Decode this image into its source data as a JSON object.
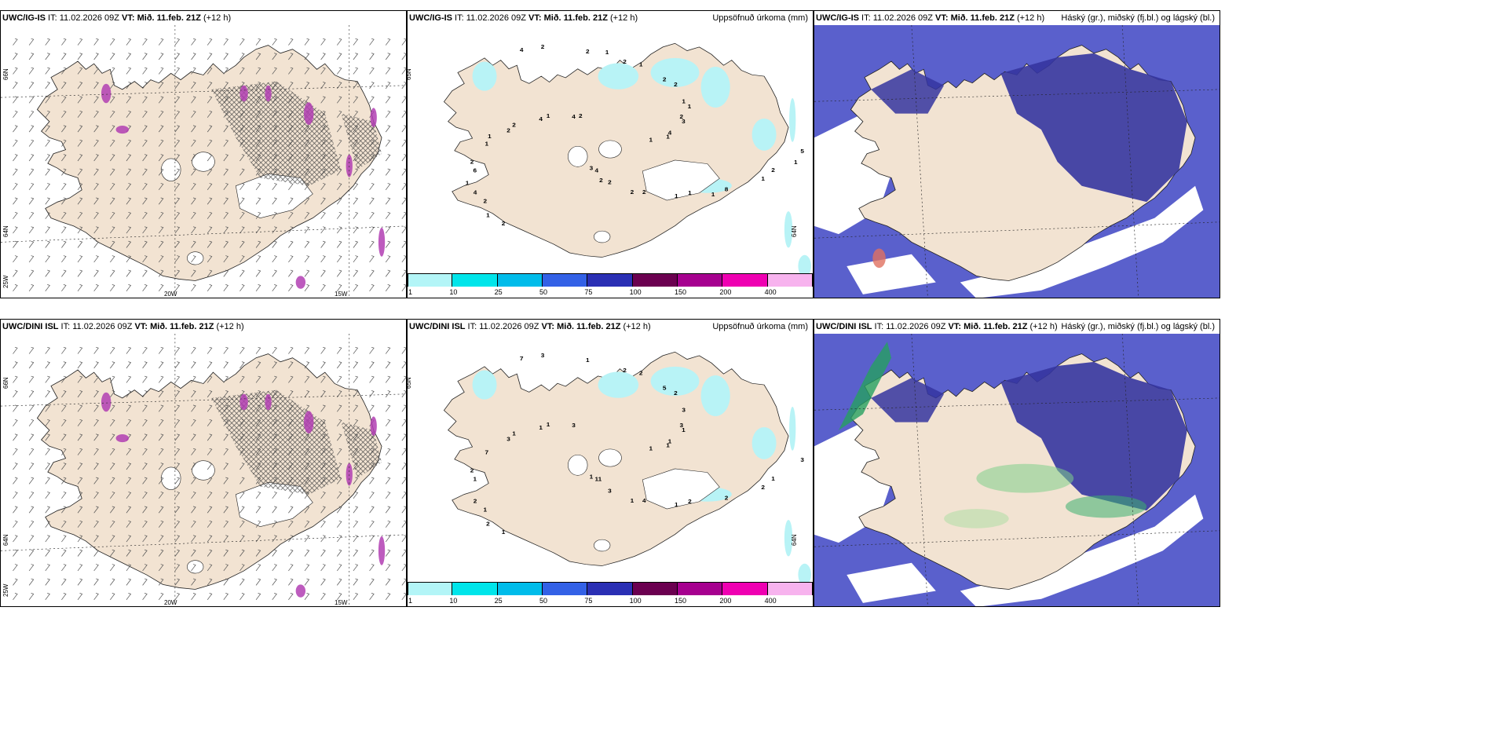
{
  "panels": [
    {
      "id": "p1",
      "model": "UWC/IG-IS",
      "it_label": "IT:",
      "it_value": "11.02.2026 09Z",
      "vt_label": "VT:",
      "vt_value": "Mið. 11.feb. 21Z",
      "lead": "(+12 h)",
      "right_title": "",
      "kind": "wind",
      "lat_labels": [
        "66N",
        "64N",
        "25W"
      ],
      "lon_labels": [
        "20W",
        "15W"
      ]
    },
    {
      "id": "p2",
      "model": "UWC/IG-IS",
      "it_label": "IT:",
      "it_value": "11.02.2026 09Z",
      "vt_label": "VT:",
      "vt_value": "Mið. 11.feb. 21Z",
      "lead": "(+12 h)",
      "right_title": "Uppsöfnuð úrkoma (mm)",
      "kind": "precip",
      "lat_labels": [
        "65N",
        "64N"
      ],
      "numbers": [
        "1",
        "2",
        "2",
        "1",
        "2",
        "2",
        "4",
        "4",
        "2",
        "6",
        "2",
        "2",
        "4",
        "4",
        "2",
        "2",
        "8",
        "1",
        "1",
        "2",
        "4",
        "5",
        "4",
        "1",
        "1",
        "2",
        "3",
        "3",
        "2",
        "1",
        "2",
        "2",
        "2",
        "1",
        "1",
        "1",
        "1",
        "1",
        "1",
        "1",
        "2",
        "2",
        "1",
        "1"
      ]
    },
    {
      "id": "p3",
      "model": "UWC/IG-IS",
      "it_label": "IT:",
      "it_value": "11.02.2026 09Z",
      "vt_label": "VT:",
      "vt_value": "Mið. 11.feb. 21Z",
      "lead": "(+12 h)",
      "right_title": "Háský (gr.), miðský (fj.bl.) og lágský (bl.)",
      "kind": "cloud"
    },
    {
      "id": "p4",
      "model": "UWC/DINI ISL",
      "it_label": "IT:",
      "it_value": "11.02.2026 09Z",
      "vt_label": "VT:",
      "vt_value": "Mið. 11.feb. 21Z",
      "lead": "(+12 h)",
      "right_title": "",
      "kind": "wind",
      "lat_labels": [
        "66N",
        "64N",
        "25W"
      ],
      "lon_labels": [
        "20W",
        "15W"
      ]
    },
    {
      "id": "p5",
      "model": "UWC/DINI ISL",
      "it_label": "IT:",
      "it_value": "11.02.2026 09Z",
      "vt_label": "VT:",
      "vt_value": "Mið. 11.feb. 21Z",
      "lead": "(+12 h)",
      "right_title": "Uppsöfnuð úrkoma (mm)",
      "kind": "precip",
      "lat_labels": [
        "65N",
        "64N"
      ],
      "numbers": [
        "1",
        "1",
        "2",
        "2",
        "3",
        "3",
        "11",
        "7",
        "1",
        "1",
        "5",
        "4",
        "1",
        "1",
        "1",
        "1",
        "2",
        "7",
        "3",
        "3",
        "3",
        "3",
        "2",
        "2",
        "1",
        "1",
        "1",
        "1",
        "3",
        "2",
        "2",
        "2",
        "1",
        "1",
        "1",
        "2"
      ]
    },
    {
      "id": "p6",
      "model": "UWC/DINI ISL",
      "it_label": "IT:",
      "it_value": "11.02.2026 09Z",
      "vt_label": "VT:",
      "vt_value": "Mið. 11.feb. 21Z",
      "lead": "(+12 h)",
      "right_title": "Háský (gr.), miðský (fj.bl.) og lágský (bl.)",
      "kind": "cloud"
    }
  ],
  "legend": {
    "ticks": [
      "1",
      "10",
      "25",
      "50",
      "75",
      "100",
      "150",
      "200",
      "400"
    ],
    "colors": [
      "#b3f5f7",
      "#00e5ea",
      "#00bcea",
      "#3361e6",
      "#2a2fb4",
      "#6b0050",
      "#a6008f",
      "#ef00b2",
      "#f7b3ee"
    ]
  },
  "colors": {
    "land": "#f2e3d2",
    "cloud_mid": "#3535a0",
    "cloud_low": "#5a60cc",
    "precip_light": "#b8f3f6",
    "high_cloud": "#25a060"
  }
}
